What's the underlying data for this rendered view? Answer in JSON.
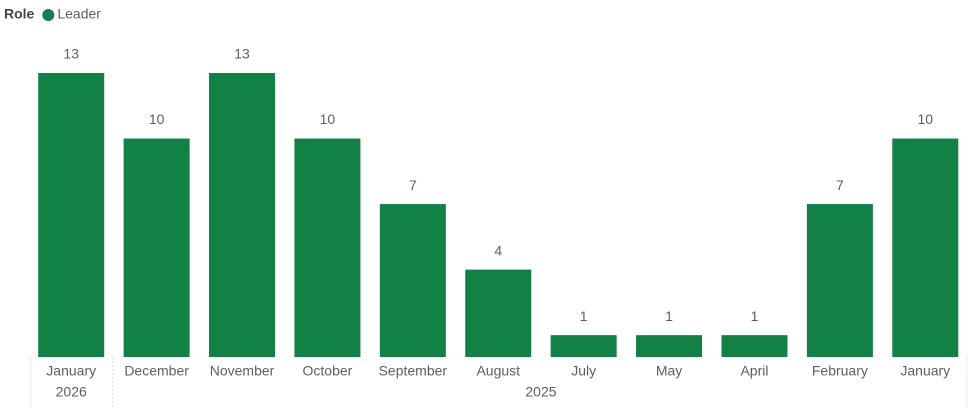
{
  "chart_data": {
    "type": "bar",
    "legend_title": "Role",
    "categories": [
      "January",
      "December",
      "November",
      "October",
      "September",
      "August",
      "July",
      "May",
      "April",
      "February",
      "January"
    ],
    "category_groups": [
      "2026",
      "2025",
      "2025",
      "2025",
      "2025",
      "2025",
      "2025",
      "2025",
      "2025",
      "2025",
      "2025"
    ],
    "series": [
      {
        "name": "Leader",
        "color": "#118146",
        "values": [
          13,
          10,
          13,
          10,
          7,
          4,
          1,
          1,
          1,
          7,
          10
        ]
      }
    ],
    "data_labels": true
  }
}
